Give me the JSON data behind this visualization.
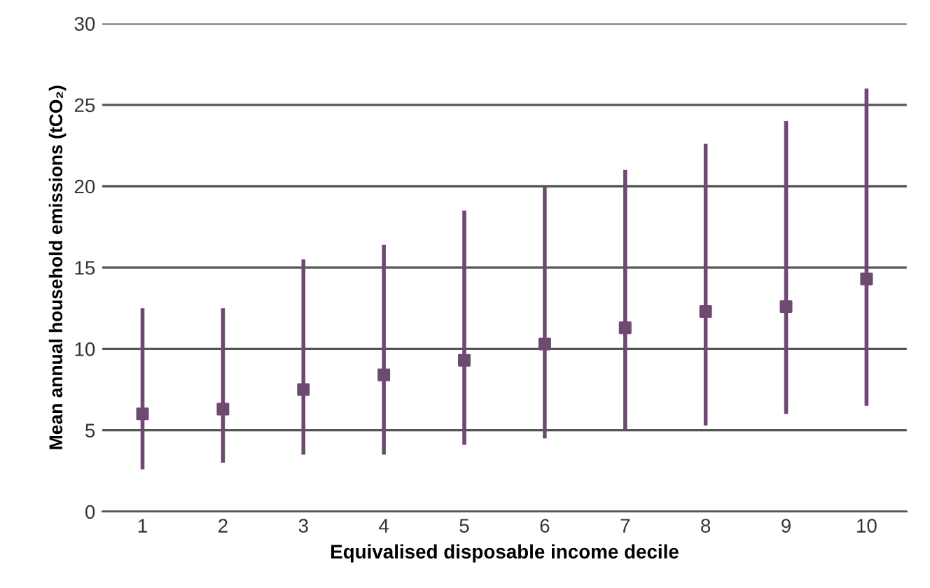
{
  "chart_data": {
    "type": "scatter",
    "xlabel": "Equivalised disposable income decile",
    "ylabel": "Mean annual household emissions (tCO₂)",
    "categories": [
      "1",
      "2",
      "3",
      "4",
      "5",
      "6",
      "7",
      "8",
      "9",
      "10"
    ],
    "series": [
      {
        "color": "#6e4a72",
        "values": [
          6.0,
          6.3,
          7.5,
          8.4,
          9.3,
          10.3,
          11.3,
          12.3,
          12.6,
          14.3
        ],
        "errors": [
          [
            2.6,
            12.5
          ],
          [
            3.0,
            12.5
          ],
          [
            3.5,
            15.5
          ],
          [
            3.5,
            16.4
          ],
          [
            4.1,
            18.5
          ],
          [
            4.5,
            20.0
          ],
          [
            5.0,
            21.0
          ],
          [
            5.3,
            22.6
          ],
          [
            6.0,
            24.0
          ],
          [
            6.5,
            26.0
          ]
        ]
      }
    ],
    "ylim": [
      0,
      30
    ],
    "yticks": [
      0,
      5,
      10,
      15,
      20,
      25,
      30
    ],
    "grid": "y",
    "marker": "square"
  }
}
